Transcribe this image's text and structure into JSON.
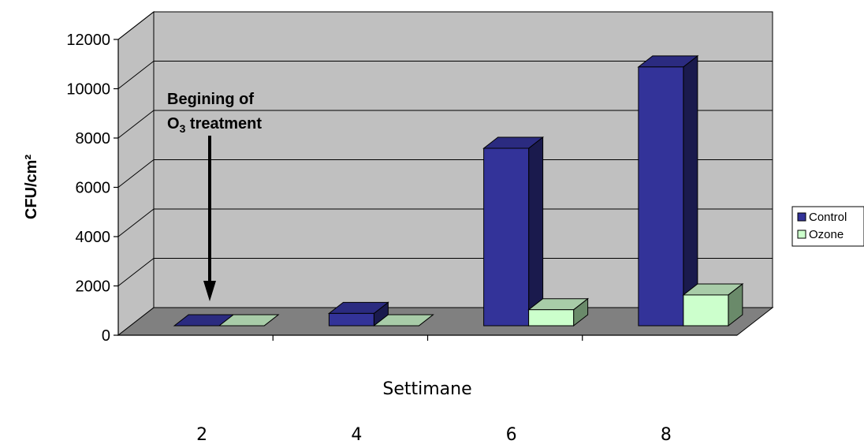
{
  "chart_data": {
    "type": "bar",
    "categories": [
      "2",
      "4",
      "6",
      "8"
    ],
    "series": [
      {
        "name": "Control",
        "values": [
          0,
          500,
          7200,
          10500
        ],
        "color": "#333399"
      },
      {
        "name": "Ozone",
        "values": [
          0,
          0,
          650,
          1250
        ],
        "color": "#ccffcc"
      }
    ],
    "xlabel": "Settimane",
    "ylabel": "CFU/cm²",
    "ylim": [
      0,
      12000
    ],
    "yticks": [
      "0",
      "2000",
      "4000",
      "6000",
      "8000",
      "10000",
      "12000"
    ],
    "grid": true,
    "legend": "right",
    "annotation": {
      "line1": "Begining of",
      "line2_prefix": "O",
      "line2_sub": "3",
      "line2_suffix": " treatment"
    },
    "colors": {
      "wall": "#c0c0c0",
      "floor": "#808080",
      "control_side": "#1a1a4d",
      "control_top": "#2b2b80",
      "ozone_side": "#6a8a6a",
      "ozone_top": "#a8cca8"
    }
  }
}
